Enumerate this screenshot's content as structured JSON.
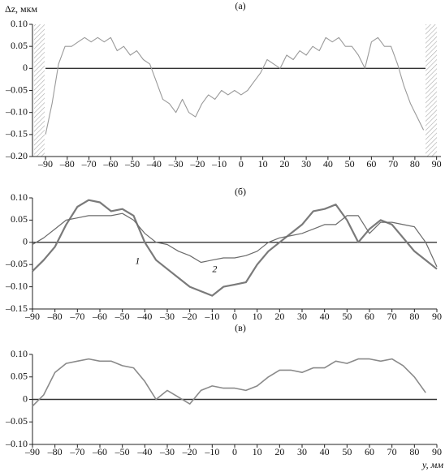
{
  "chart_data": [
    {
      "type": "line",
      "title": "(а)",
      "y_label": "Δz, мкм",
      "x": [
        -90,
        -87,
        -84,
        -81,
        -78,
        -75,
        -72,
        -69,
        -66,
        -63,
        -60,
        -57,
        -54,
        -51,
        -48,
        -45,
        -42,
        -39,
        -36,
        -33,
        -30,
        -27,
        -24,
        -21,
        -18,
        -15,
        -12,
        -9,
        -6,
        -3,
        0,
        3,
        6,
        9,
        12,
        15,
        18,
        21,
        24,
        27,
        30,
        33,
        36,
        39,
        42,
        45,
        48,
        51,
        54,
        57,
        60,
        63,
        66,
        69,
        72,
        75,
        78,
        81,
        84
      ],
      "series": [
        {
          "color": "#9a9a9a",
          "values": [
            -0.15,
            -0.08,
            0.01,
            0.05,
            0.05,
            0.06,
            0.07,
            0.06,
            0.07,
            0.06,
            0.07,
            0.04,
            0.05,
            0.03,
            0.04,
            0.02,
            0.01,
            -0.03,
            -0.07,
            -0.08,
            -0.1,
            -0.07,
            -0.1,
            -0.11,
            -0.08,
            -0.06,
            -0.07,
            -0.05,
            -0.06,
            -0.05,
            -0.06,
            -0.05,
            -0.03,
            -0.01,
            0.02,
            0.01,
            0.0,
            0.03,
            0.02,
            0.04,
            0.03,
            0.05,
            0.04,
            0.07,
            0.06,
            0.07,
            0.05,
            0.05,
            0.03,
            0.0,
            0.06,
            0.07,
            0.05,
            0.05,
            0.01,
            -0.04,
            -0.08,
            -0.11,
            -0.14
          ]
        }
      ],
      "xlim": [
        -96,
        92
      ],
      "xticks": [
        {
          "value": -90,
          "label": "–90"
        },
        {
          "value": -80,
          "label": "–80"
        },
        {
          "value": -70,
          "label": "–70"
        },
        {
          "value": -60,
          "label": "–60"
        },
        {
          "value": -50,
          "label": "–50"
        },
        {
          "value": -40,
          "label": "–40"
        },
        {
          "value": -30,
          "label": "–30"
        },
        {
          "value": -20,
          "label": "–20"
        },
        {
          "value": -10,
          "label": "–10"
        },
        0,
        10,
        20,
        30,
        40,
        50,
        60,
        70,
        80,
        90
      ],
      "ylim": [
        -0.2,
        0.1
      ],
      "yticks": [
        {
          "value": -0.2,
          "label": "–0.20"
        },
        {
          "value": -0.15,
          "label": "–0.15"
        },
        {
          "value": -0.1,
          "label": "–0.10"
        },
        {
          "value": -0.05,
          "label": "–0.05"
        },
        0,
        0.05,
        {
          "value": 0.1,
          "label": "0.10"
        }
      ],
      "zero_line": true
    },
    {
      "type": "line",
      "title": "(б)",
      "x": [
        -90,
        -85,
        -80,
        -75,
        -70,
        -65,
        -60,
        -55,
        -50,
        -45,
        -40,
        -35,
        -30,
        -25,
        -20,
        -15,
        -10,
        -5,
        0,
        5,
        10,
        15,
        20,
        25,
        30,
        35,
        40,
        45,
        50,
        55,
        60,
        65,
        70,
        75,
        80,
        85,
        90
      ],
      "series": [
        {
          "name": "1",
          "color": "#7a7a7a",
          "values": [
            -0.065,
            -0.04,
            -0.01,
            0.04,
            0.08,
            0.095,
            0.09,
            0.07,
            0.075,
            0.06,
            0.0,
            -0.04,
            -0.06,
            -0.08,
            -0.1,
            -0.11,
            -0.12,
            -0.1,
            -0.095,
            -0.09,
            -0.05,
            -0.02,
            0.0,
            0.02,
            0.04,
            0.07,
            0.075,
            0.085,
            0.05,
            0.0,
            0.03,
            0.05,
            0.04,
            0.01,
            -0.02,
            -0.04,
            -0.06
          ]
        },
        {
          "name": "2",
          "color": "#6a6a6a",
          "values": [
            -0.005,
            0.01,
            0.03,
            0.05,
            0.055,
            0.06,
            0.06,
            0.06,
            0.065,
            0.05,
            0.02,
            0.0,
            -0.005,
            -0.02,
            -0.03,
            -0.045,
            -0.04,
            -0.035,
            -0.035,
            -0.03,
            -0.02,
            0.0,
            0.01,
            0.015,
            0.02,
            0.03,
            0.04,
            0.04,
            0.06,
            0.06,
            0.02,
            0.045,
            0.045,
            0.04,
            0.035,
            0.0,
            -0.055
          ]
        }
      ],
      "xlim": [
        -90,
        90
      ],
      "xticks": [
        {
          "value": -90,
          "label": "–90"
        },
        {
          "value": -80,
          "label": "–80"
        },
        {
          "value": -70,
          "label": "–70"
        },
        {
          "value": -60,
          "label": "–60"
        },
        {
          "value": -50,
          "label": "–50"
        },
        {
          "value": -40,
          "label": "–40"
        },
        {
          "value": -30,
          "label": "–30"
        },
        {
          "value": -20,
          "label": "–20"
        },
        {
          "value": -10,
          "label": "–10"
        },
        0,
        10,
        20,
        30,
        40,
        50,
        60,
        70,
        80,
        90
      ],
      "ylim": [
        -0.15,
        0.1
      ],
      "yticks": [
        {
          "value": -0.15,
          "label": "–0.15"
        },
        {
          "value": -0.1,
          "label": "–0.10"
        },
        {
          "value": -0.05,
          "label": "–0.05"
        },
        0,
        0.05,
        {
          "value": 0.1,
          "label": "0.10"
        }
      ],
      "zero_line": true
    },
    {
      "type": "line",
      "title": "(в)",
      "x_label": "y, мм",
      "x": [
        -90,
        -85,
        -80,
        -75,
        -70,
        -65,
        -60,
        -55,
        -50,
        -45,
        -40,
        -35,
        -30,
        -25,
        -20,
        -15,
        -10,
        -5,
        0,
        5,
        10,
        15,
        20,
        25,
        30,
        35,
        40,
        45,
        50,
        55,
        60,
        65,
        70,
        75,
        80,
        85
      ],
      "series": [
        {
          "color": "#8a8a8a",
          "values": [
            -0.015,
            0.01,
            0.06,
            0.08,
            0.085,
            0.09,
            0.085,
            0.085,
            0.075,
            0.07,
            0.04,
            0.0,
            0.02,
            0.005,
            -0.01,
            0.02,
            0.03,
            0.025,
            0.025,
            0.02,
            0.03,
            0.05,
            0.065,
            0.065,
            0.06,
            0.07,
            0.07,
            0.085,
            0.08,
            0.09,
            0.09,
            0.085,
            0.09,
            0.075,
            0.05,
            0.015
          ]
        }
      ],
      "xlim": [
        -90,
        90
      ],
      "xticks": [
        {
          "value": -90,
          "label": "–90"
        },
        {
          "value": -80,
          "label": "–80"
        },
        {
          "value": -70,
          "label": "–70"
        },
        {
          "value": -60,
          "label": "–60"
        },
        {
          "value": -50,
          "label": "–50"
        },
        {
          "value": -40,
          "label": "–40"
        },
        {
          "value": -30,
          "label": "–30"
        },
        {
          "value": -20,
          "label": "–20"
        },
        {
          "value": -10,
          "label": "–10"
        },
        0,
        10,
        20,
        30,
        40,
        50,
        60,
        70,
        80,
        90
      ],
      "ylim": [
        -0.1,
        0.1
      ],
      "yticks": [
        {
          "value": -0.1,
          "label": "–0.10"
        },
        {
          "value": -0.05,
          "label": "–0.05"
        },
        0,
        0.05,
        {
          "value": 0.1,
          "label": "0.10"
        }
      ],
      "zero_line": true
    }
  ]
}
